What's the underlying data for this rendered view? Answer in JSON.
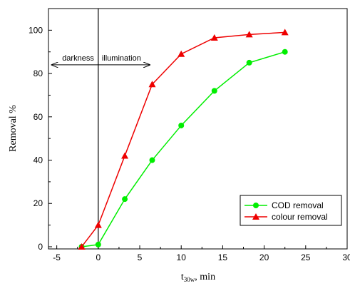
{
  "chart_data": {
    "type": "line",
    "title": "",
    "xlabel_main": "t",
    "xlabel_sub": "30w",
    "xlabel_suffix": ", min",
    "ylabel": "Removal %",
    "xlim": [
      -6,
      30
    ],
    "ylim": [
      -1,
      110
    ],
    "xticks": [
      -5,
      0,
      5,
      10,
      15,
      20,
      25,
      30
    ],
    "yticks": [
      0,
      20,
      40,
      60,
      80,
      100
    ],
    "grid": false,
    "legend_position": "bottom-right",
    "series": [
      {
        "name": "COD removal",
        "color": "#00ee00",
        "marker": "circle",
        "x": [
          -2,
          0,
          3.2,
          6.5,
          10,
          14,
          18.2,
          22.5
        ],
        "y": [
          0,
          1,
          22,
          40,
          56,
          72,
          85,
          90
        ]
      },
      {
        "name": "colour removal",
        "color": "#ee0000",
        "marker": "triangle",
        "x": [
          -2,
          0,
          3.2,
          6.5,
          10,
          14,
          18.2,
          22.5
        ],
        "y": [
          0,
          10,
          42,
          75,
          89,
          96.5,
          98,
          99
        ]
      }
    ],
    "annotations": {
      "vline_x": 0,
      "arrow_y": 84,
      "arrow_x_range": [
        -5.6,
        6.2
      ],
      "left_label": "darkness",
      "right_label": "illumination"
    }
  }
}
